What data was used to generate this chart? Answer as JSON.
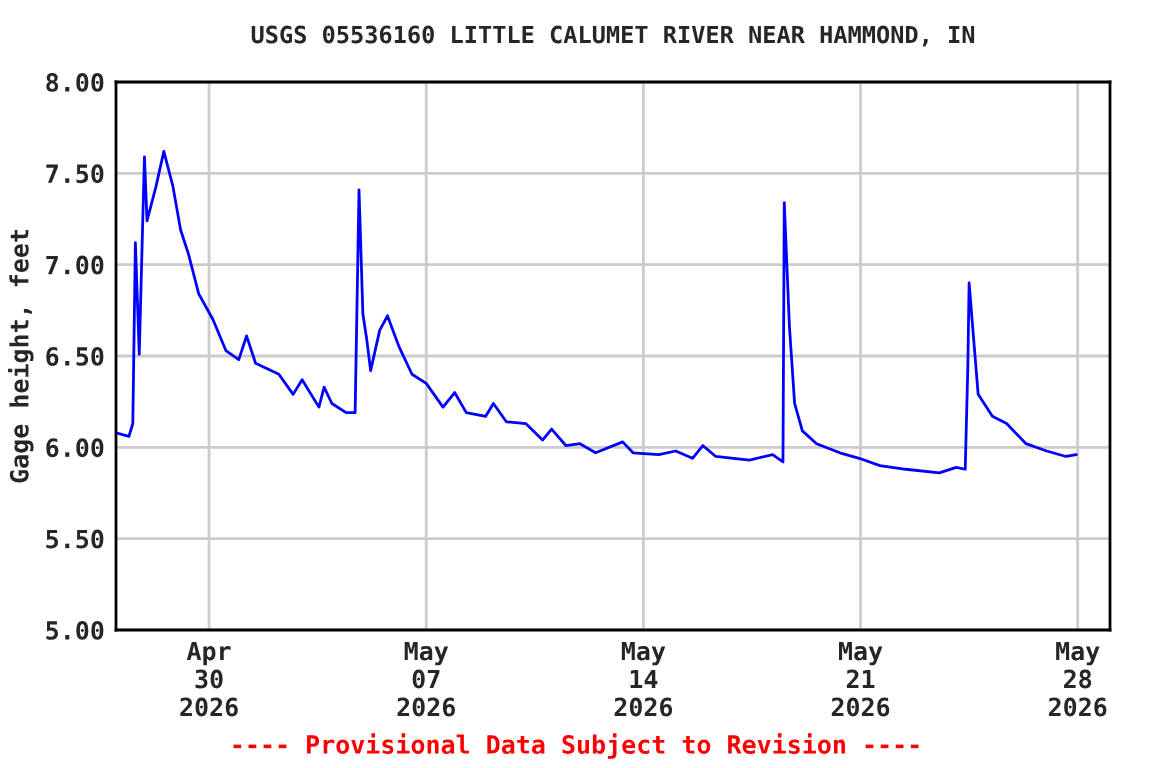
{
  "chart_data": {
    "type": "line",
    "title": "USGS 05536160 LITTLE CALUMET RIVER NEAR HAMMOND, IN",
    "ylabel": "Gage height, feet",
    "annotations": [
      "---- Provisional Data Subject to Revision ----"
    ],
    "x": [
      "2026-04-27T00:00",
      "2026-04-27T10:00",
      "2026-04-27T13:00",
      "2026-04-27T15:00",
      "2026-04-27T18:00",
      "2026-04-27T22:00",
      "2026-04-28T00:00",
      "2026-04-28T07:00",
      "2026-04-28T13:00",
      "2026-04-28T20:00",
      "2026-04-29T02:00",
      "2026-04-29T08:00",
      "2026-04-29T16:00",
      "2026-04-30T03:00",
      "2026-04-30T13:00",
      "2026-04-30T23:00",
      "2026-05-01T05:00",
      "2026-05-01T12:00",
      "2026-05-02T06:00",
      "2026-05-02T17:00",
      "2026-05-03T00:00",
      "2026-05-03T13:00",
      "2026-05-03T17:00",
      "2026-05-03T23:00",
      "2026-05-04T10:00",
      "2026-05-04T17:00",
      "2026-05-04T20:00",
      "2026-05-04T23:00",
      "2026-05-05T02:00",
      "2026-05-05T05:00",
      "2026-05-05T12:00",
      "2026-05-05T18:00",
      "2026-05-06T03:00",
      "2026-05-06T13:00",
      "2026-05-07T00:00",
      "2026-05-07T13:00",
      "2026-05-07T22:00",
      "2026-05-08T07:00",
      "2026-05-08T22:00",
      "2026-05-09T04:00",
      "2026-05-09T14:00",
      "2026-05-10T05:00",
      "2026-05-10T18:00",
      "2026-05-11T01:00",
      "2026-05-11T12:00",
      "2026-05-11T23:00",
      "2026-05-12T11:00",
      "2026-05-13T08:00",
      "2026-05-13T16:00",
      "2026-05-14T12:00",
      "2026-05-15T01:00",
      "2026-05-15T14:00",
      "2026-05-15T22:00",
      "2026-05-16T08:00",
      "2026-05-17T10:00",
      "2026-05-18T04:00",
      "2026-05-18T12:00",
      "2026-05-18T13:00",
      "2026-05-18T17:00",
      "2026-05-18T21:00",
      "2026-05-19T03:00",
      "2026-05-19T14:00",
      "2026-05-20T08:00",
      "2026-05-20T23:00",
      "2026-05-21T15:00",
      "2026-05-22T11:00",
      "2026-05-23T13:00",
      "2026-05-24T02:00",
      "2026-05-24T09:00",
      "2026-05-24T11:00",
      "2026-05-24T12:00",
      "2026-05-24T16:00",
      "2026-05-24T19:00",
      "2026-05-25T06:00",
      "2026-05-25T17:00",
      "2026-05-26T08:00",
      "2026-05-27T00:00",
      "2026-05-27T15:00",
      "2026-05-27T23:00"
    ],
    "series": [
      {
        "color": "#0000ff",
        "values": [
          6.08,
          6.06,
          6.13,
          7.12,
          6.51,
          7.59,
          7.24,
          7.43,
          7.62,
          7.43,
          7.19,
          7.06,
          6.84,
          6.7,
          6.53,
          6.48,
          6.61,
          6.46,
          6.4,
          6.29,
          6.37,
          6.22,
          6.33,
          6.24,
          6.19,
          6.19,
          7.41,
          6.73,
          6.59,
          6.42,
          6.64,
          6.72,
          6.55,
          6.4,
          6.35,
          6.22,
          6.3,
          6.19,
          6.17,
          6.24,
          6.14,
          6.13,
          6.04,
          6.1,
          6.01,
          6.02,
          5.97,
          6.03,
          5.97,
          5.96,
          5.98,
          5.94,
          6.01,
          5.95,
          5.93,
          5.96,
          5.92,
          7.34,
          6.66,
          6.24,
          6.09,
          6.02,
          5.97,
          5.94,
          5.9,
          5.88,
          5.86,
          5.89,
          5.88,
          6.44,
          6.9,
          6.55,
          6.29,
          6.17,
          6.13,
          6.02,
          5.98,
          5.95,
          5.96
        ]
      }
    ],
    "xlim": [
      "2026-04-27T00:00",
      "2026-05-29T01:00"
    ],
    "xticks": [
      {
        "value": "2026-04-30",
        "label": "Apr\n30\n2026"
      },
      {
        "value": "2026-05-07",
        "label": "May\n07\n2026"
      },
      {
        "value": "2026-05-14",
        "label": "May\n14\n2026"
      },
      {
        "value": "2026-05-21",
        "label": "May\n21\n2026"
      },
      {
        "value": "2026-05-28",
        "label": "May\n28\n2026"
      }
    ],
    "ylim": [
      5.0,
      8.0
    ],
    "yticks": [
      {
        "value": 5.0,
        "label": "5.00"
      },
      {
        "value": 5.5,
        "label": "5.50"
      },
      {
        "value": 6.0,
        "label": "6.00"
      },
      {
        "value": 6.5,
        "label": "6.50"
      },
      {
        "value": 7.0,
        "label": "7.00"
      },
      {
        "value": 7.5,
        "label": "7.50"
      },
      {
        "value": 8.0,
        "label": "8.00"
      }
    ],
    "grid": true,
    "legend": false,
    "marker": "none",
    "line_style": "solid"
  }
}
